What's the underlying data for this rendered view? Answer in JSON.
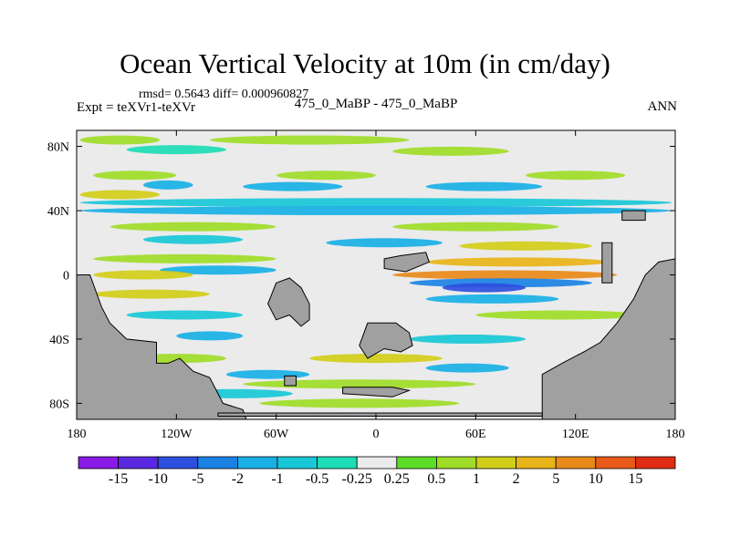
{
  "chart_data": {
    "type": "heatmap",
    "title": "Ocean Vertical Velocity at 10m (in cm/day)",
    "stats_text": "rmsd= 0.5643 diff= 0.000960827",
    "left_label": "Expt = teXVr1-teXVr",
    "center_label": "475_0_MaBP - 475_0_MaBP",
    "right_label": "ANN",
    "x_ticks": [
      "180",
      "120W",
      "60W",
      "0",
      "60E",
      "120E",
      "180"
    ],
    "y_ticks": [
      "80N",
      "40N",
      "0",
      "40S",
      "80S"
    ],
    "x_range": [
      -180,
      180
    ],
    "y_range": [
      -90,
      90
    ],
    "colorbar": {
      "labels": [
        "-15",
        "-10",
        "-5",
        "-2",
        "-1",
        "-0.5",
        "-0.25",
        "0.25",
        "0.5",
        "1",
        "2",
        "5",
        "10",
        "15"
      ],
      "colors": [
        "#8a1ae6",
        "#5a28e0",
        "#2d4fe0",
        "#1b82e4",
        "#19b0e6",
        "#19c8d6",
        "#1ddcb6",
        "#ebebeb",
        "#5ddc28",
        "#9fdc28",
        "#d2cd19",
        "#e8b419",
        "#e88a19",
        "#e85a19",
        "#e02d14"
      ]
    },
    "land_color": "#a0a0a0",
    "bands": [
      {
        "lat": 84,
        "lon_start": -178,
        "lon_end": -130,
        "level": "0.5"
      },
      {
        "lat": 84,
        "lon_start": -100,
        "lon_end": 20,
        "level": "0.5"
      },
      {
        "lat": 78,
        "lon_start": -150,
        "lon_end": -90,
        "level": "-0.25"
      },
      {
        "lat": 77,
        "lon_start": 10,
        "lon_end": 80,
        "level": "0.5"
      },
      {
        "lat": 62,
        "lon_start": -170,
        "lon_end": -120,
        "level": "0.5"
      },
      {
        "lat": 62,
        "lon_start": -60,
        "lon_end": 0,
        "level": "0.5"
      },
      {
        "lat": 62,
        "lon_start": 90,
        "lon_end": 150,
        "level": "0.5"
      },
      {
        "lat": 56,
        "lon_start": -140,
        "lon_end": -110,
        "level": "-1"
      },
      {
        "lat": 55,
        "lon_start": -80,
        "lon_end": -20,
        "level": "-1"
      },
      {
        "lat": 55,
        "lon_start": 30,
        "lon_end": 100,
        "level": "-1"
      },
      {
        "lat": 50,
        "lon_start": -178,
        "lon_end": -130,
        "level": "1"
      },
      {
        "lat": 45,
        "lon_start": -178,
        "lon_end": 178,
        "level": "-0.5"
      },
      {
        "lat": 40,
        "lon_start": -178,
        "lon_end": 178,
        "level": "-1"
      },
      {
        "lat": 30,
        "lon_start": -160,
        "lon_end": -60,
        "level": "0.5"
      },
      {
        "lat": 30,
        "lon_start": 10,
        "lon_end": 110,
        "level": "0.5"
      },
      {
        "lat": 22,
        "lon_start": -140,
        "lon_end": -80,
        "level": "-0.5"
      },
      {
        "lat": 20,
        "lon_start": -30,
        "lon_end": 40,
        "level": "-1"
      },
      {
        "lat": 18,
        "lon_start": 50,
        "lon_end": 130,
        "level": "1"
      },
      {
        "lat": 10,
        "lon_start": -170,
        "lon_end": -60,
        "level": "0.5"
      },
      {
        "lat": 8,
        "lon_start": 30,
        "lon_end": 140,
        "level": "2"
      },
      {
        "lat": 3,
        "lon_start": -130,
        "lon_end": -60,
        "level": "-1"
      },
      {
        "lat": 0,
        "lon_start": -170,
        "lon_end": -110,
        "level": "1"
      },
      {
        "lat": 0,
        "lon_start": 10,
        "lon_end": 145,
        "level": "5"
      },
      {
        "lat": -5,
        "lon_start": 20,
        "lon_end": 130,
        "level": "-2"
      },
      {
        "lat": -8,
        "lon_start": 40,
        "lon_end": 90,
        "level": "-5"
      },
      {
        "lat": -12,
        "lon_start": -170,
        "lon_end": -100,
        "level": "1"
      },
      {
        "lat": -15,
        "lon_start": 30,
        "lon_end": 110,
        "level": "-1"
      },
      {
        "lat": -25,
        "lon_start": -150,
        "lon_end": -80,
        "level": "-0.5"
      },
      {
        "lat": -25,
        "lon_start": 60,
        "lon_end": 160,
        "level": "0.5"
      },
      {
        "lat": -38,
        "lon_start": -120,
        "lon_end": -80,
        "level": "-1"
      },
      {
        "lat": -40,
        "lon_start": 20,
        "lon_end": 90,
        "level": "-0.5"
      },
      {
        "lat": -52,
        "lon_start": -150,
        "lon_end": -90,
        "level": "0.5"
      },
      {
        "lat": -52,
        "lon_start": -40,
        "lon_end": 40,
        "level": "1"
      },
      {
        "lat": -58,
        "lon_start": 30,
        "lon_end": 80,
        "level": "-1"
      },
      {
        "lat": -62,
        "lon_start": -90,
        "lon_end": -40,
        "level": "-1"
      },
      {
        "lat": -68,
        "lon_start": -80,
        "lon_end": 60,
        "level": "0.5"
      },
      {
        "lat": -74,
        "lon_start": -120,
        "lon_end": -50,
        "level": "-0.5"
      },
      {
        "lat": -80,
        "lon_start": -70,
        "lon_end": 50,
        "level": "0.5"
      }
    ],
    "land": [
      {
        "name": "left-continent",
        "poly": [
          [
            -180,
            0
          ],
          [
            -172,
            0
          ],
          [
            -165,
            -20
          ],
          [
            -160,
            -30
          ],
          [
            -150,
            -40
          ],
          [
            -132,
            -42
          ],
          [
            -132,
            -55
          ],
          [
            -125,
            -55
          ],
          [
            -118,
            -52
          ],
          [
            -110,
            -60
          ],
          [
            -100,
            -64
          ],
          [
            -92,
            -80
          ],
          [
            -80,
            -84
          ],
          [
            -78,
            -90
          ],
          [
            -180,
            -90
          ]
        ]
      },
      {
        "name": "central-block",
        "poly": [
          [
            -60,
            -5
          ],
          [
            -52,
            -2
          ],
          [
            -45,
            -8
          ],
          [
            -40,
            -18
          ],
          [
            -40,
            -28
          ],
          [
            -45,
            -32
          ],
          [
            -52,
            -25
          ],
          [
            -60,
            -28
          ],
          [
            -65,
            -18
          ]
        ]
      },
      {
        "name": "south-block",
        "poly": [
          [
            -5,
            -30
          ],
          [
            12,
            -30
          ],
          [
            20,
            -36
          ],
          [
            22,
            -44
          ],
          [
            15,
            -48
          ],
          [
            5,
            -46
          ],
          [
            -5,
            -52
          ],
          [
            -10,
            -44
          ]
        ]
      },
      {
        "name": "south-strip",
        "poly": [
          [
            -20,
            -70
          ],
          [
            10,
            -70
          ],
          [
            20,
            -72
          ],
          [
            10,
            -76
          ],
          [
            -20,
            -74
          ]
        ]
      },
      {
        "name": "north-block",
        "poly": [
          [
            5,
            10
          ],
          [
            15,
            12
          ],
          [
            30,
            14
          ],
          [
            32,
            8
          ],
          [
            18,
            2
          ],
          [
            5,
            4
          ]
        ]
      },
      {
        "name": "right-continent",
        "poly": [
          [
            100,
            -90
          ],
          [
            100,
            -62
          ],
          [
            112,
            -55
          ],
          [
            125,
            -48
          ],
          [
            135,
            -42
          ],
          [
            145,
            -30
          ],
          [
            155,
            -15
          ],
          [
            162,
            0
          ],
          [
            170,
            8
          ],
          [
            180,
            10
          ],
          [
            180,
            -90
          ]
        ]
      },
      {
        "name": "east-island",
        "poly": [
          [
            136,
            20
          ],
          [
            142,
            20
          ],
          [
            142,
            -5
          ],
          [
            136,
            -5
          ]
        ]
      },
      {
        "name": "ne-block",
        "poly": [
          [
            148,
            40
          ],
          [
            162,
            40
          ],
          [
            162,
            34
          ],
          [
            148,
            34
          ]
        ]
      },
      {
        "name": "small-island",
        "poly": [
          [
            -55,
            -63
          ],
          [
            -48,
            -63
          ],
          [
            -48,
            -69
          ],
          [
            -55,
            -69
          ]
        ]
      },
      {
        "name": "south-rim",
        "poly": [
          [
            -95,
            -86
          ],
          [
            100,
            -86
          ],
          [
            100,
            -88
          ],
          [
            -95,
            -88
          ]
        ]
      }
    ]
  }
}
